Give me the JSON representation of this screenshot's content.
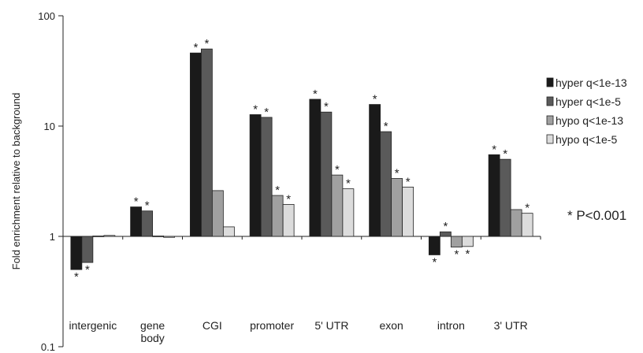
{
  "chart_data": {
    "type": "bar",
    "scale": "log",
    "ylabel": "Fold enrichment relative to background",
    "ylim": [
      0.1,
      100
    ],
    "yticks": [
      {
        "value": 100,
        "label": "100"
      },
      {
        "value": 10,
        "label": "10"
      },
      {
        "value": 1,
        "label": "1"
      },
      {
        "value": 0.1,
        "label": "0.1"
      }
    ],
    "categories": [
      {
        "lines": [
          "intergenic"
        ]
      },
      {
        "lines": [
          "gene",
          "body"
        ]
      },
      {
        "lines": [
          "CGI"
        ]
      },
      {
        "lines": [
          "promoter"
        ]
      },
      {
        "lines": [
          "5' UTR"
        ]
      },
      {
        "lines": [
          "exon"
        ]
      },
      {
        "lines": [
          "intron"
        ]
      },
      {
        "lines": [
          "3' UTR"
        ]
      }
    ],
    "series": [
      {
        "name": "hyper q<1e-13",
        "color": "#1a1a1a",
        "values": [
          0.5,
          1.85,
          46,
          12.7,
          17.5,
          15.7,
          0.68,
          5.5
        ],
        "significant": [
          true,
          true,
          true,
          true,
          true,
          true,
          true,
          true
        ]
      },
      {
        "name": "hyper q<1e-5",
        "color": "#5a5a5a",
        "values": [
          0.58,
          1.7,
          50,
          12.0,
          13.4,
          8.9,
          1.1,
          5.0
        ],
        "significant": [
          true,
          true,
          true,
          true,
          true,
          true,
          true,
          true
        ]
      },
      {
        "name": "hypo q<1e-13",
        "color": "#a0a0a0",
        "values": [
          1.01,
          1.01,
          2.6,
          2.35,
          3.6,
          3.35,
          0.8,
          1.75
        ],
        "significant": [
          false,
          false,
          false,
          true,
          true,
          true,
          true,
          false
        ]
      },
      {
        "name": "hypo q<1e-5",
        "color": "#dcdcdc",
        "values": [
          1.02,
          0.98,
          1.22,
          1.95,
          2.7,
          2.8,
          0.81,
          1.62
        ],
        "significant": [
          false,
          false,
          false,
          true,
          true,
          true,
          true,
          true
        ]
      }
    ],
    "significance_marker": "*",
    "note": "* P<0.001",
    "legend_position": "right",
    "grid": false
  }
}
